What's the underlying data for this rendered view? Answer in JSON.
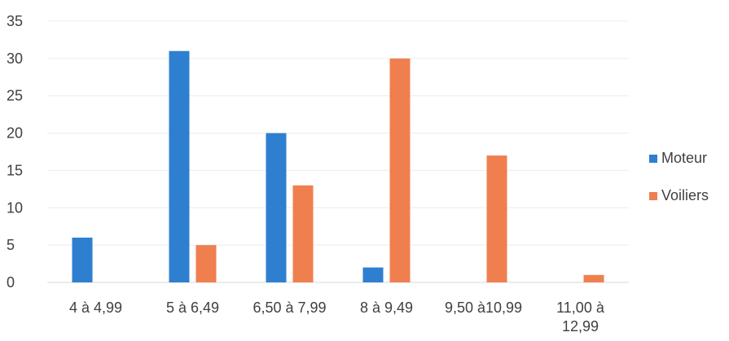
{
  "chart_data": {
    "type": "bar",
    "categories": [
      [
        "4 à 4,99"
      ],
      [
        "5 à 6,49"
      ],
      [
        "6,50 à 7,99"
      ],
      [
        "8 à 9,49"
      ],
      [
        "9,50 à10,99"
      ],
      [
        "11,00  à",
        "12,99"
      ]
    ],
    "series": [
      {
        "name": "Moteur",
        "color": "#2e7fd0",
        "values": [
          6,
          31,
          20,
          2,
          0,
          0
        ]
      },
      {
        "name": "Voiliers",
        "color": "#f07f4f",
        "values": [
          0,
          5,
          13,
          30,
          17,
          1
        ]
      }
    ],
    "ylim": [
      0,
      35
    ],
    "yticks": [
      0,
      5,
      10,
      15,
      20,
      25,
      30,
      35
    ],
    "grid": true,
    "legend": "right"
  }
}
